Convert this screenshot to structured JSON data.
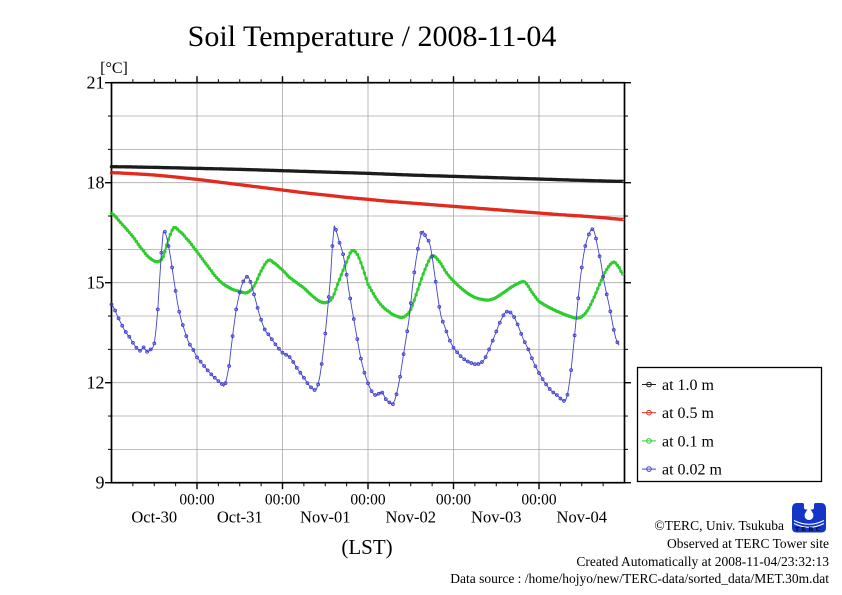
{
  "title": "Soil Temperature / 2008-11-04",
  "y_axis": {
    "unit_label": "[°C]",
    "ticks": [
      21,
      18,
      15,
      12,
      9
    ],
    "min": 9,
    "max": 21
  },
  "x_axis": {
    "axis_label": "(LST)",
    "time_tick_label": "00:00",
    "time_tick_hours": [
      24,
      48,
      72,
      96,
      120
    ],
    "date_labels": [
      {
        "label": "Oct-30",
        "hour": 12
      },
      {
        "label": "Oct-31",
        "hour": 36
      },
      {
        "label": "Nov-01",
        "hour": 60
      },
      {
        "label": "Nov-02",
        "hour": 84
      },
      {
        "label": "Nov-03",
        "hour": 108
      },
      {
        "label": "Nov-04",
        "hour": 132
      }
    ]
  },
  "legend": {
    "items": [
      "at 1.0 m",
      "at 0.5 m",
      "at 0.1 m",
      "at 0.02 m"
    ]
  },
  "footer": {
    "copyright": "©TERC, Univ. Tsukuba",
    "observed": "Observed at TERC Tower site",
    "created": "Created Automatically at 2008-11-04/23:32:13",
    "source": "Data source : /home/hojyo/new/TERC-data/sorted_data/MET.30m.dat",
    "logo_text": "TERC"
  },
  "colors": {
    "grid": "#a9a9a9",
    "frame": "#000000",
    "logo_blue": "#1436c8"
  },
  "chart_data": {
    "type": "line",
    "title": "Soil Temperature / 2008-11-04",
    "xlabel": "(LST)",
    "ylabel": "[°C]",
    "x_unit": "hours since 2008-10-30 00:00 LST",
    "xlim": [
      0,
      144
    ],
    "ylim": [
      9,
      21
    ],
    "grid": true,
    "legend_position": "right-bottom-outside",
    "series": [
      {
        "name": "at 1.0 m",
        "color": "#1c1c1c",
        "points": [
          [
            0,
            18.48
          ],
          [
            12,
            18.46
          ],
          [
            24,
            18.43
          ],
          [
            36,
            18.4
          ],
          [
            48,
            18.36
          ],
          [
            60,
            18.32
          ],
          [
            72,
            18.28
          ],
          [
            84,
            18.23
          ],
          [
            96,
            18.19
          ],
          [
            108,
            18.15
          ],
          [
            120,
            18.11
          ],
          [
            132,
            18.07
          ],
          [
            143.5,
            18.04
          ]
        ]
      },
      {
        "name": "at 0.5 m",
        "color": "#e22b1e",
        "points": [
          [
            0,
            18.3
          ],
          [
            6,
            18.27
          ],
          [
            12,
            18.23
          ],
          [
            18,
            18.17
          ],
          [
            24,
            18.1
          ],
          [
            30,
            18.02
          ],
          [
            36,
            17.94
          ],
          [
            42,
            17.86
          ],
          [
            48,
            17.78
          ],
          [
            54,
            17.7
          ],
          [
            60,
            17.63
          ],
          [
            66,
            17.56
          ],
          [
            72,
            17.5
          ],
          [
            78,
            17.44
          ],
          [
            84,
            17.39
          ],
          [
            90,
            17.34
          ],
          [
            96,
            17.29
          ],
          [
            102,
            17.24
          ],
          [
            108,
            17.19
          ],
          [
            114,
            17.14
          ],
          [
            120,
            17.09
          ],
          [
            126,
            17.04
          ],
          [
            132,
            17.0
          ],
          [
            138,
            16.95
          ],
          [
            143.5,
            16.9
          ]
        ]
      },
      {
        "name": "at 0.1 m",
        "color": "#2ecc2e",
        "points": [
          [
            0,
            17.08
          ],
          [
            3,
            16.75
          ],
          [
            6,
            16.38
          ],
          [
            9,
            15.95
          ],
          [
            11,
            15.72
          ],
          [
            13,
            15.63
          ],
          [
            14.5,
            15.78
          ],
          [
            16,
            16.3
          ],
          [
            17.5,
            16.65
          ],
          [
            19,
            16.55
          ],
          [
            21,
            16.33
          ],
          [
            24,
            15.93
          ],
          [
            27,
            15.5
          ],
          [
            30,
            15.1
          ],
          [
            32,
            14.92
          ],
          [
            34,
            14.8
          ],
          [
            36,
            14.74
          ],
          [
            38,
            14.7
          ],
          [
            40,
            14.9
          ],
          [
            42,
            15.35
          ],
          [
            44,
            15.67
          ],
          [
            45.5,
            15.6
          ],
          [
            48,
            15.38
          ],
          [
            50,
            15.16
          ],
          [
            52,
            15.0
          ],
          [
            54,
            14.84
          ],
          [
            56,
            14.64
          ],
          [
            58,
            14.47
          ],
          [
            60,
            14.4
          ],
          [
            62,
            14.55
          ],
          [
            64,
            15.1
          ],
          [
            66,
            15.62
          ],
          [
            67.5,
            15.96
          ],
          [
            69,
            15.85
          ],
          [
            70.5,
            15.45
          ],
          [
            72,
            14.95
          ],
          [
            75,
            14.42
          ],
          [
            78,
            14.12
          ],
          [
            80,
            14.0
          ],
          [
            82,
            13.97
          ],
          [
            84,
            14.2
          ],
          [
            86,
            14.8
          ],
          [
            88,
            15.4
          ],
          [
            90,
            15.8
          ],
          [
            92,
            15.64
          ],
          [
            94,
            15.3
          ],
          [
            96,
            15.05
          ],
          [
            98,
            14.85
          ],
          [
            100,
            14.68
          ],
          [
            102,
            14.56
          ],
          [
            104,
            14.5
          ],
          [
            106,
            14.48
          ],
          [
            108,
            14.56
          ],
          [
            110,
            14.7
          ],
          [
            112,
            14.85
          ],
          [
            114,
            14.97
          ],
          [
            116,
            15.02
          ],
          [
            118,
            14.72
          ],
          [
            120,
            14.44
          ],
          [
            123,
            14.25
          ],
          [
            126,
            14.1
          ],
          [
            129,
            13.98
          ],
          [
            131,
            13.94
          ],
          [
            133,
            14.08
          ],
          [
            135,
            14.45
          ],
          [
            137,
            14.95
          ],
          [
            139,
            15.4
          ],
          [
            141,
            15.62
          ],
          [
            142.5,
            15.45
          ],
          [
            143.5,
            15.26
          ]
        ]
      },
      {
        "name": "at 0.02 m",
        "color": "#4343cf",
        "points": [
          [
            0,
            14.35
          ],
          [
            2,
            13.93
          ],
          [
            4,
            13.52
          ],
          [
            5,
            13.38
          ],
          [
            6,
            13.2
          ],
          [
            7,
            13.05
          ],
          [
            8,
            12.96
          ],
          [
            9,
            13.06
          ],
          [
            10,
            12.93
          ],
          [
            11,
            13.0
          ],
          [
            12,
            13.18
          ],
          [
            13,
            14.2
          ],
          [
            14,
            15.9
          ],
          [
            14.6,
            16.56
          ],
          [
            15.2,
            16.45
          ],
          [
            16,
            16.1
          ],
          [
            17.5,
            15.1
          ],
          [
            19,
            14.13
          ],
          [
            20,
            13.73
          ],
          [
            21.5,
            13.25
          ],
          [
            23,
            12.98
          ],
          [
            24,
            12.76
          ],
          [
            26,
            12.5
          ],
          [
            28,
            12.25
          ],
          [
            29.5,
            12.1
          ],
          [
            31,
            11.96
          ],
          [
            31.8,
            11.93
          ],
          [
            33,
            12.5
          ],
          [
            33.7,
            13.18
          ],
          [
            35,
            14.2
          ],
          [
            36.5,
            14.9
          ],
          [
            38,
            15.18
          ],
          [
            38.7,
            15.1
          ],
          [
            40,
            14.65
          ],
          [
            41.3,
            14.12
          ],
          [
            43,
            13.6
          ],
          [
            44.2,
            13.42
          ],
          [
            46,
            13.15
          ],
          [
            48,
            12.9
          ],
          [
            50,
            12.77
          ],
          [
            52,
            12.45
          ],
          [
            54,
            12.15
          ],
          [
            55.9,
            11.87
          ],
          [
            57.5,
            11.8
          ],
          [
            58.5,
            12.2
          ],
          [
            59.5,
            13.0
          ],
          [
            60.5,
            14.0
          ],
          [
            61.5,
            15.2
          ],
          [
            62.4,
            16.65
          ],
          [
            63.2,
            16.5
          ],
          [
            64,
            16.2
          ],
          [
            64.9,
            15.9
          ],
          [
            65.7,
            15.45
          ],
          [
            66.5,
            14.85
          ],
          [
            67.5,
            14.2
          ],
          [
            68.5,
            13.6
          ],
          [
            69.9,
            12.78
          ],
          [
            71,
            12.3
          ],
          [
            72.2,
            11.93
          ],
          [
            73.3,
            11.7
          ],
          [
            74.4,
            11.62
          ],
          [
            75.8,
            11.72
          ],
          [
            77.2,
            11.48
          ],
          [
            78.2,
            11.4
          ],
          [
            79.1,
            11.38
          ],
          [
            80.5,
            11.9
          ],
          [
            82.2,
            12.98
          ],
          [
            83.5,
            13.9
          ],
          [
            84.6,
            14.98
          ],
          [
            85.8,
            15.9
          ],
          [
            87.2,
            16.54
          ],
          [
            88.3,
            16.35
          ],
          [
            89.5,
            16.1
          ],
          [
            90.9,
            15.1
          ],
          [
            92.3,
            14.1
          ],
          [
            93.5,
            13.7
          ],
          [
            94.6,
            13.35
          ],
          [
            96,
            13.05
          ],
          [
            97.5,
            12.85
          ],
          [
            99.3,
            12.68
          ],
          [
            101.3,
            12.58
          ],
          [
            103,
            12.56
          ],
          [
            104.5,
            12.68
          ],
          [
            106,
            13.0
          ],
          [
            107.5,
            13.4
          ],
          [
            109,
            13.8
          ],
          [
            110.5,
            14.1
          ],
          [
            111.5,
            14.12
          ],
          [
            112.5,
            14.05
          ],
          [
            114,
            13.75
          ],
          [
            115.4,
            13.35
          ],
          [
            117,
            13.0
          ],
          [
            118.5,
            12.6
          ],
          [
            120.4,
            12.22
          ],
          [
            122,
            11.95
          ],
          [
            123.5,
            11.75
          ],
          [
            125.4,
            11.6
          ],
          [
            126.8,
            11.46
          ],
          [
            127.8,
            11.55
          ],
          [
            128.8,
            12.2
          ],
          [
            129.7,
            13.1
          ],
          [
            130.7,
            14.2
          ],
          [
            131.6,
            15.15
          ],
          [
            132.8,
            16.0
          ],
          [
            134,
            16.45
          ],
          [
            134.8,
            16.6
          ],
          [
            135.6,
            16.5
          ],
          [
            136.7,
            15.95
          ],
          [
            137.5,
            15.55
          ],
          [
            138.1,
            15.1
          ],
          [
            139,
            14.65
          ],
          [
            140.1,
            14.08
          ],
          [
            141.5,
            13.35
          ],
          [
            142.9,
            13.08
          ]
        ]
      }
    ]
  }
}
